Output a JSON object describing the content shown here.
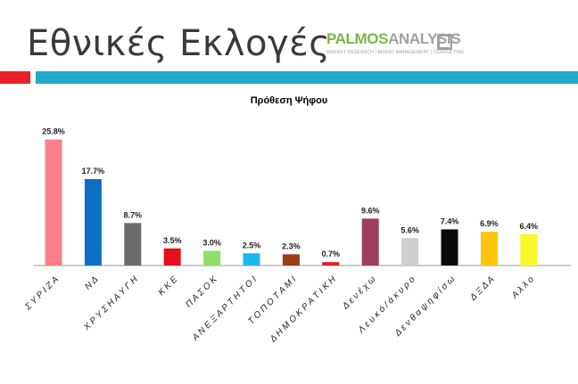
{
  "header": {
    "title": "Εθνικές Εκλογές",
    "logo_primary": "PALMOS",
    "logo_secondary": "ANALYSIS",
    "logo_tagline": "MARKET RESEARCH | BRAND MANAGEMENT | CONSULTING"
  },
  "colors": {
    "accent_red": "#e8202a",
    "accent_teal": "#20a9c9"
  },
  "chart_data": {
    "type": "bar",
    "title": "Πρόθεση Ψήφου",
    "categories": [
      "Σ Υ Ρ Ι Ζ Α",
      "Ν Δ",
      "Χ Ρ Υ Σ Η Α Υ Γ Η",
      "Κ Κ Ε",
      "Π Α Σ Ο Κ",
      "Α Ν Ε Ξ Α Ρ Τ Η Τ Ο Ι",
      "Τ Ο Π Ο Τ Α Μ Ι",
      "Δ Η Μ Ο Κ Ρ Α Τ Ι Κ Η",
      "Δ ε ν έ χ ω",
      "Λ ε υ κ ό / ά κ υ ρ ο",
      "Δ ε ν θ α ψ η φ ί σ ω",
      "Δ Ξ Δ Α",
      "Α λ λ ο"
    ],
    "values": [
      25.8,
      17.7,
      8.7,
      3.5,
      3.0,
      2.5,
      2.3,
      0.7,
      9.6,
      5.6,
      7.4,
      6.9,
      6.4
    ],
    "labels": [
      "25.8%",
      "17.7%",
      "8.7%",
      "3.5%",
      "3.0%",
      "2.5%",
      "2.3%",
      "0.7%",
      "9.6%",
      "5.6%",
      "7.4%",
      "6.9%",
      "6.4%"
    ],
    "colors": [
      "#fd7f8c",
      "#0c70c4",
      "#6b6b6b",
      "#e4101d",
      "#8ee06a",
      "#1cb6ef",
      "#9a3f16",
      "#ec1b24",
      "#9c3f5c",
      "#cfcfcf",
      "#0a0a0a",
      "#fdc50a",
      "#f9f729"
    ],
    "xlabel": "",
    "ylabel": "",
    "ylim": [
      0,
      27
    ],
    "grid": false,
    "legend": "none"
  }
}
